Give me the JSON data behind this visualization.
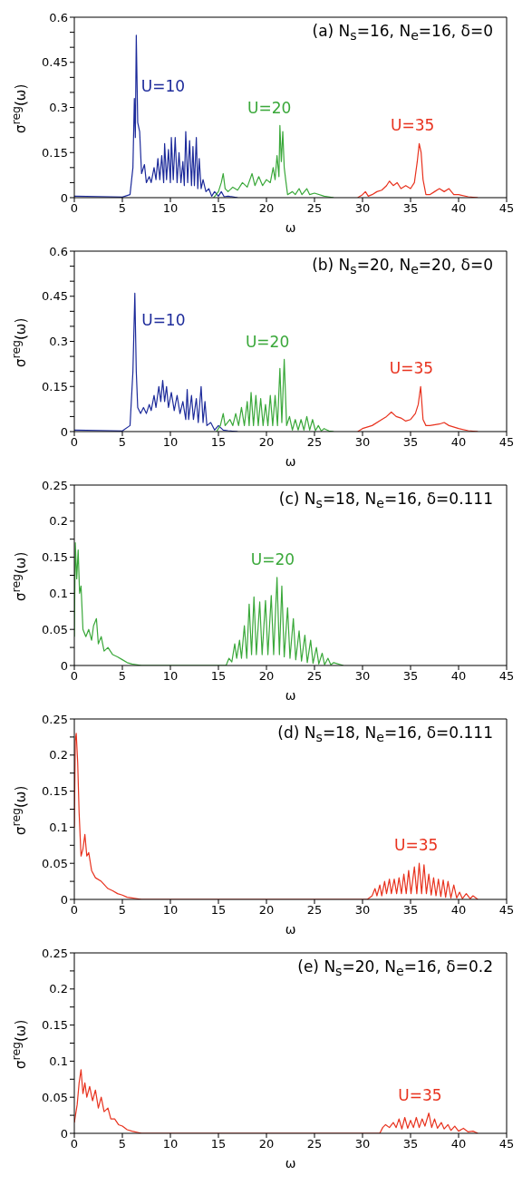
{
  "chart_data": [
    {
      "type": "line",
      "title": "(a)  N$_{s}$=16,  N$_{e}$=16,  δ=0",
      "xlabel": "ω",
      "ylabel": "σ$^{reg}$(ω)",
      "xlim": [
        0,
        45
      ],
      "xticks": [
        0,
        5,
        10,
        15,
        20,
        25,
        30,
        35,
        40,
        45
      ],
      "ylim": [
        0,
        0.6
      ],
      "yticks": [
        0,
        {
          "value": 0.05,
          "label": null
        },
        {
          "value": 0.1,
          "label": null
        },
        0.15,
        {
          "value": 0.2,
          "label": null
        },
        {
          "value": 0.25,
          "label": null
        },
        0.3,
        {
          "value": 0.35,
          "label": null
        },
        {
          "value": 0.4,
          "label": null
        },
        0.45,
        {
          "value": 0.5,
          "label": null
        },
        {
          "value": 0.55,
          "label": null
        },
        0.6
      ],
      "series": [
        {
          "name": "U=10",
          "color": "#1c2a9a",
          "x": [
            0,
            5,
            5.8,
            6.1,
            6.25,
            6.35,
            6.45,
            6.6,
            6.8,
            7.0,
            7.3,
            7.5,
            7.8,
            8.0,
            8.3,
            8.5,
            8.7,
            8.9,
            9.1,
            9.3,
            9.4,
            9.6,
            9.8,
            10.0,
            10.1,
            10.3,
            10.5,
            10.7,
            10.9,
            11.1,
            11.3,
            11.45,
            11.6,
            11.8,
            12.0,
            12.2,
            12.35,
            12.5,
            12.7,
            12.85,
            13.0,
            13.2,
            13.4,
            13.7,
            14.0,
            14.3,
            14.6,
            15.0,
            15.3,
            15.6,
            16,
            17
          ],
          "values": [
            0.005,
            0.002,
            0.01,
            0.1,
            0.33,
            0.2,
            0.54,
            0.25,
            0.22,
            0.08,
            0.11,
            0.05,
            0.07,
            0.05,
            0.1,
            0.06,
            0.13,
            0.06,
            0.14,
            0.05,
            0.18,
            0.06,
            0.16,
            0.05,
            0.2,
            0.06,
            0.2,
            0.05,
            0.15,
            0.05,
            0.12,
            0.04,
            0.22,
            0.05,
            0.19,
            0.04,
            0.17,
            0.04,
            0.2,
            0.03,
            0.13,
            0.03,
            0.06,
            0.02,
            0.03,
            0.005,
            0.02,
            0.005,
            0.02,
            0.003,
            0.005,
            0
          ]
        },
        {
          "name": "U=20",
          "color": "#3aa83a",
          "x": [
            14.5,
            15.0,
            15.3,
            15.5,
            15.7,
            16.0,
            16.5,
            17,
            17.5,
            18,
            18.5,
            18.8,
            19.2,
            19.6,
            20.0,
            20.4,
            20.7,
            20.9,
            21.1,
            21.3,
            21.4,
            21.55,
            21.7,
            21.85,
            22.0,
            22.2,
            22.7,
            23.0,
            23.4,
            23.7,
            24.2,
            24.5,
            25.0,
            26,
            27
          ],
          "values": [
            0,
            0.02,
            0.05,
            0.08,
            0.03,
            0.02,
            0.035,
            0.025,
            0.05,
            0.035,
            0.08,
            0.04,
            0.07,
            0.04,
            0.06,
            0.05,
            0.1,
            0.06,
            0.14,
            0.07,
            0.24,
            0.12,
            0.22,
            0.1,
            0.06,
            0.01,
            0.02,
            0.01,
            0.03,
            0.01,
            0.03,
            0.01,
            0.015,
            0.005,
            0
          ]
        },
        {
          "name": "U=35",
          "color": "#e8321e",
          "x": [
            29.5,
            30,
            30.3,
            30.6,
            31,
            31.5,
            32,
            32.5,
            32.8,
            33.2,
            33.6,
            34,
            34.5,
            35,
            35.4,
            35.7,
            35.9,
            36.1,
            36.3,
            36.6,
            37,
            37.5,
            38,
            38.5,
            39,
            39.5,
            40,
            41,
            42
          ],
          "values": [
            0,
            0.01,
            0.02,
            0.005,
            0.01,
            0.02,
            0.025,
            0.04,
            0.055,
            0.04,
            0.05,
            0.03,
            0.04,
            0.03,
            0.05,
            0.12,
            0.18,
            0.15,
            0.06,
            0.01,
            0.01,
            0.02,
            0.03,
            0.02,
            0.03,
            0.01,
            0.01,
            0.003,
            0
          ]
        }
      ]
    },
    {
      "type": "line",
      "title": "(b)  N$_{s}$=20,  N$_{e}$=20,  δ=0",
      "xlabel": "ω",
      "ylabel": "σ$^{reg}$(ω)",
      "xlim": [
        0,
        45
      ],
      "xticks": [
        0,
        5,
        10,
        15,
        20,
        25,
        30,
        35,
        40,
        45
      ],
      "ylim": [
        0,
        0.6
      ],
      "yticks": [
        0,
        {
          "value": 0.05,
          "label": null
        },
        {
          "value": 0.1,
          "label": null
        },
        0.15,
        {
          "value": 0.2,
          "label": null
        },
        {
          "value": 0.25,
          "label": null
        },
        0.3,
        {
          "value": 0.35,
          "label": null
        },
        {
          "value": 0.4,
          "label": null
        },
        0.45,
        {
          "value": 0.5,
          "label": null
        },
        {
          "value": 0.55,
          "label": null
        },
        0.6
      ],
      "series": [
        {
          "name": "U=10",
          "color": "#1c2a9a",
          "x": [
            0,
            5,
            5.8,
            6.1,
            6.3,
            6.45,
            6.6,
            6.9,
            7.2,
            7.5,
            7.8,
            8.0,
            8.3,
            8.5,
            8.8,
            9.0,
            9.2,
            9.4,
            9.6,
            9.8,
            10.1,
            10.4,
            10.7,
            11,
            11.3,
            11.6,
            11.75,
            11.9,
            12.2,
            12.4,
            12.7,
            12.9,
            13.2,
            13.4,
            13.6,
            13.8,
            14.2,
            14.6,
            15,
            15.5,
            16,
            17
          ],
          "values": [
            0.005,
            0.002,
            0.02,
            0.2,
            0.46,
            0.2,
            0.08,
            0.06,
            0.08,
            0.06,
            0.09,
            0.07,
            0.12,
            0.08,
            0.15,
            0.1,
            0.17,
            0.1,
            0.15,
            0.08,
            0.13,
            0.07,
            0.12,
            0.06,
            0.1,
            0.04,
            0.14,
            0.04,
            0.12,
            0.04,
            0.11,
            0.03,
            0.15,
            0.03,
            0.1,
            0.02,
            0.03,
            0.005,
            0.02,
            0.005,
            0.003,
            0
          ]
        },
        {
          "name": "U=20",
          "color": "#3aa83a",
          "x": [
            14.8,
            15.2,
            15.5,
            15.7,
            16.2,
            16.5,
            16.8,
            17.1,
            17.4,
            17.7,
            18.0,
            18.2,
            18.4,
            18.65,
            18.9,
            19.15,
            19.4,
            19.65,
            19.9,
            20.15,
            20.4,
            20.65,
            20.9,
            21.15,
            21.4,
            21.6,
            21.85,
            22.1,
            22.4,
            22.7,
            23.0,
            23.3,
            23.6,
            23.9,
            24.2,
            24.5,
            24.8,
            25.1,
            25.4,
            25.7,
            26,
            26.5,
            27
          ],
          "values": [
            0,
            0.02,
            0.06,
            0.02,
            0.04,
            0.02,
            0.06,
            0.02,
            0.08,
            0.02,
            0.1,
            0.02,
            0.13,
            0.02,
            0.12,
            0.02,
            0.11,
            0.02,
            0.09,
            0.02,
            0.12,
            0.02,
            0.12,
            0.02,
            0.21,
            0.03,
            0.24,
            0.02,
            0.05,
            0.005,
            0.04,
            0.005,
            0.04,
            0.005,
            0.05,
            0.005,
            0.04,
            0.003,
            0.02,
            0.002,
            0.01,
            0.002,
            0
          ]
        },
        {
          "name": "U=35",
          "color": "#e8321e",
          "x": [
            29.5,
            30,
            31,
            32,
            32.5,
            33,
            33.5,
            34,
            34.5,
            35,
            35.5,
            35.8,
            36.05,
            36.3,
            36.6,
            37,
            38,
            38.5,
            39,
            40,
            41,
            42
          ],
          "values": [
            0,
            0.01,
            0.02,
            0.04,
            0.05,
            0.065,
            0.05,
            0.045,
            0.035,
            0.04,
            0.06,
            0.09,
            0.15,
            0.04,
            0.02,
            0.02,
            0.025,
            0.03,
            0.02,
            0.01,
            0.003,
            0
          ]
        }
      ]
    },
    {
      "type": "line",
      "title": "(c)  N$_{s}$=18,  N$_{e}$=16,  δ=0.111",
      "xlabel": "ω",
      "ylabel": "σ$^{reg}$(ω)",
      "xlim": [
        0,
        45
      ],
      "xticks": [
        0,
        5,
        10,
        15,
        20,
        25,
        30,
        35,
        40,
        45
      ],
      "ylim": [
        0,
        0.25
      ],
      "yticks": [
        0,
        {
          "value": 0.025,
          "label": null
        },
        0.05,
        {
          "value": 0.075,
          "label": null
        },
        0.1,
        {
          "value": 0.125,
          "label": null
        },
        0.15,
        {
          "value": 0.175,
          "label": null
        },
        0.2,
        {
          "value": 0.225,
          "label": null
        },
        0.25
      ],
      "series": [
        {
          "name": "U=20",
          "color": "#3aa83a",
          "x": [
            0,
            0.1,
            0.25,
            0.4,
            0.55,
            0.7,
            0.9,
            1.2,
            1.5,
            1.8,
            2.0,
            2.3,
            2.5,
            2.8,
            3.1,
            3.5,
            4,
            4.5,
            5,
            5.5,
            6,
            7,
            15.8,
            16.1,
            16.4,
            16.7,
            16.9,
            17.2,
            17.4,
            17.7,
            17.95,
            18.2,
            18.45,
            18.7,
            18.95,
            19.3,
            19.55,
            19.9,
            20.15,
            20.5,
            20.75,
            21.1,
            21.35,
            21.6,
            21.85,
            22.2,
            22.45,
            22.8,
            23.05,
            23.4,
            23.65,
            24.0,
            24.25,
            24.6,
            24.85,
            25.2,
            25.45,
            25.8,
            26.05,
            26.4,
            26.7,
            27,
            28
          ],
          "values": [
            0.04,
            0.17,
            0.12,
            0.16,
            0.1,
            0.11,
            0.05,
            0.04,
            0.05,
            0.035,
            0.055,
            0.065,
            0.03,
            0.04,
            0.02,
            0.025,
            0.015,
            0.012,
            0.008,
            0.004,
            0.002,
            0,
            0,
            0.01,
            0.005,
            0.03,
            0.01,
            0.035,
            0.01,
            0.055,
            0.01,
            0.085,
            0.015,
            0.095,
            0.015,
            0.088,
            0.015,
            0.09,
            0.015,
            0.097,
            0.015,
            0.122,
            0.015,
            0.11,
            0.012,
            0.08,
            0.01,
            0.065,
            0.008,
            0.048,
            0.006,
            0.042,
            0.004,
            0.035,
            0.003,
            0.025,
            0.002,
            0.017,
            0.001,
            0.01,
            0.001,
            0.004,
            0
          ]
        }
      ]
    },
    {
      "type": "line",
      "title": "(d)  N$_{s}$=18,  N$_{e}$=16,  δ=0.111",
      "xlabel": "ω",
      "ylabel": "σ$^{reg}$(ω)",
      "xlim": [
        0,
        45
      ],
      "xticks": [
        0,
        5,
        10,
        15,
        20,
        25,
        30,
        35,
        40,
        45
      ],
      "ylim": [
        0,
        0.25
      ],
      "yticks": [
        0,
        {
          "value": 0.025,
          "label": null
        },
        0.05,
        {
          "value": 0.075,
          "label": null
        },
        0.1,
        {
          "value": 0.125,
          "label": null
        },
        0.15,
        {
          "value": 0.175,
          "label": null
        },
        0.2,
        {
          "value": 0.225,
          "label": null
        },
        0.25
      ],
      "series": [
        {
          "name": "U=35",
          "color": "#e8321e",
          "x": [
            0,
            0.1,
            0.2,
            0.35,
            0.5,
            0.7,
            0.9,
            1.1,
            1.3,
            1.5,
            1.8,
            2.2,
            2.8,
            3.5,
            4,
            4.5,
            5,
            5.5,
            6,
            7,
            30.5,
            31,
            31.3,
            31.5,
            31.8,
            32,
            32.3,
            32.5,
            32.8,
            33,
            33.3,
            33.55,
            33.8,
            34.05,
            34.3,
            34.55,
            34.8,
            35.05,
            35.4,
            35.65,
            35.9,
            36.15,
            36.4,
            36.65,
            36.9,
            37.15,
            37.4,
            37.65,
            37.9,
            38.15,
            38.4,
            38.65,
            38.9,
            39.2,
            39.5,
            39.8,
            40.1,
            40.4,
            40.8,
            41.2,
            41.5,
            42
          ],
          "values": [
            0.1,
            0.22,
            0.23,
            0.19,
            0.12,
            0.06,
            0.07,
            0.09,
            0.06,
            0.065,
            0.04,
            0.03,
            0.025,
            0.015,
            0.012,
            0.008,
            0.006,
            0.003,
            0.002,
            0,
            0,
            0.005,
            0.015,
            0.005,
            0.02,
            0.005,
            0.025,
            0.008,
            0.028,
            0.008,
            0.028,
            0.008,
            0.03,
            0.008,
            0.035,
            0.008,
            0.04,
            0.008,
            0.045,
            0.008,
            0.05,
            0.008,
            0.048,
            0.008,
            0.035,
            0.006,
            0.03,
            0.005,
            0.028,
            0.004,
            0.027,
            0.003,
            0.025,
            0.002,
            0.02,
            0.002,
            0.01,
            0.001,
            0.008,
            0.001,
            0.005,
            0
          ]
        }
      ]
    },
    {
      "type": "line",
      "title": "(e)  N$_{s}$=20,  N$_{e}$=16,  δ=0.2",
      "xlabel": "ω",
      "ylabel": "σ$^{reg}$(ω)",
      "xlim": [
        0,
        45
      ],
      "xticks": [
        0,
        5,
        10,
        15,
        20,
        25,
        30,
        35,
        40,
        45
      ],
      "ylim": [
        0,
        0.25
      ],
      "yticks": [
        0,
        {
          "value": 0.025,
          "label": null
        },
        0.05,
        {
          "value": 0.075,
          "label": null
        },
        0.1,
        {
          "value": 0.125,
          "label": null
        },
        0.15,
        {
          "value": 0.175,
          "label": null
        },
        0.2,
        {
          "value": 0.225,
          "label": null
        },
        0.25
      ],
      "series": [
        {
          "name": "U=35",
          "color": "#e8321e",
          "x": [
            0,
            0.3,
            0.5,
            0.7,
            0.9,
            1.1,
            1.3,
            1.6,
            1.9,
            2.2,
            2.5,
            2.8,
            3.1,
            3.5,
            3.8,
            4.2,
            4.6,
            5,
            5.5,
            6,
            7,
            31.8,
            32.1,
            32.4,
            32.8,
            33.2,
            33.5,
            33.8,
            34.1,
            34.4,
            34.7,
            35.0,
            35.3,
            35.6,
            35.9,
            36.2,
            36.5,
            36.9,
            37.2,
            37.5,
            37.8,
            38.2,
            38.5,
            38.9,
            39.2,
            39.6,
            40,
            40.5,
            41,
            41.5,
            42
          ],
          "values": [
            0.015,
            0.04,
            0.07,
            0.088,
            0.055,
            0.07,
            0.05,
            0.065,
            0.045,
            0.06,
            0.035,
            0.05,
            0.03,
            0.035,
            0.02,
            0.02,
            0.012,
            0.01,
            0.005,
            0.003,
            0,
            0,
            0.008,
            0.012,
            0.008,
            0.015,
            0.008,
            0.02,
            0.006,
            0.022,
            0.007,
            0.018,
            0.008,
            0.022,
            0.008,
            0.02,
            0.01,
            0.028,
            0.008,
            0.02,
            0.007,
            0.015,
            0.006,
            0.012,
            0.004,
            0.01,
            0.003,
            0.007,
            0.002,
            0.003,
            0
          ]
        }
      ]
    }
  ]
}
